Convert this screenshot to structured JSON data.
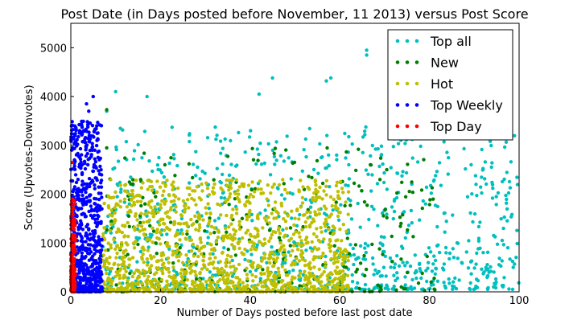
{
  "chart_data": {
    "type": "scatter",
    "title": "Post Date (in Days posted before November, 11 2013) versus Post Score",
    "xlabel": "Number of Days posted before last post date",
    "ylabel": "Score (Upvotes-Downvotes)",
    "xlim": [
      0,
      100
    ],
    "ylim": [
      0,
      5500
    ],
    "xticks": [
      "0",
      "20",
      "40",
      "60",
      "80",
      "100"
    ],
    "yticks": [
      "0",
      "1000",
      "2000",
      "3000",
      "4000",
      "5000"
    ],
    "grid": false,
    "legend_position": "top-right",
    "series": [
      {
        "name": "Top all",
        "color": "#00bfbf",
        "x_range": [
          7,
          100
        ],
        "y_range": [
          50,
          3400
        ],
        "outliers": [
          [
            66,
            4950
          ],
          [
            66,
            4850
          ],
          [
            45,
            4380
          ],
          [
            57,
            4320
          ],
          [
            58,
            4380
          ],
          [
            42,
            4050
          ],
          [
            10,
            4100
          ],
          [
            17,
            4000
          ],
          [
            8,
            3700
          ]
        ]
      },
      {
        "name": "New",
        "color": "#007f00",
        "x_range": [
          7,
          82
        ],
        "y_range": [
          0,
          2950
        ],
        "outliers": [
          [
            8,
            3730
          ],
          [
            8,
            2950
          ]
        ]
      },
      {
        "name": "Hot",
        "color": "#bfbf00",
        "x_range": [
          7,
          62
        ],
        "y_range": [
          0,
          2300
        ],
        "outliers": []
      },
      {
        "name": "Top Weekly",
        "color": "#0000ff",
        "x_range": [
          0,
          7
        ],
        "y_range": [
          0,
          3500
        ],
        "outliers": [
          [
            5,
            4000
          ],
          [
            3.5,
            3850
          ],
          [
            4,
            3700
          ]
        ]
      },
      {
        "name": "Top Day",
        "color": "#ff0000",
        "x_range": [
          0,
          1
        ],
        "y_range": [
          0,
          1900
        ],
        "outliers": [
          [
            0.3,
            2650
          ],
          [
            0.4,
            1900
          ]
        ]
      }
    ]
  }
}
